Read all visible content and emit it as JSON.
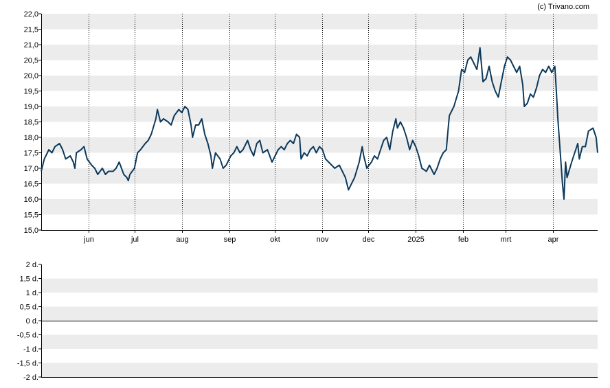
{
  "credit": "(c) Trivano.com",
  "colors": {
    "line": "#0d3a5c",
    "band": "#ececec",
    "vgrid": "#000000",
    "axis": "#000000"
  },
  "chart_data": [
    {
      "type": "line",
      "ylim": [
        15.0,
        22.0
      ],
      "y_ticks": [
        "15,0",
        "15,5",
        "16,0",
        "16,5",
        "17,0",
        "17,5",
        "18,0",
        "18,5",
        "19,0",
        "19,5",
        "20,0",
        "20,5",
        "21,0",
        "21,5",
        "22,0"
      ],
      "x_start": "2024-05-01",
      "x_end": "2025-04-30",
      "x_ticks": [
        {
          "label": "jun",
          "date": "2024-06-01"
        },
        {
          "label": "jul",
          "date": "2024-07-01"
        },
        {
          "label": "aug",
          "date": "2024-08-01"
        },
        {
          "label": "sep",
          "date": "2024-09-01"
        },
        {
          "label": "okt",
          "date": "2024-10-01"
        },
        {
          "label": "nov",
          "date": "2024-11-01"
        },
        {
          "label": "dec",
          "date": "2024-12-01"
        },
        {
          "label": "2025",
          "date": "2025-01-01"
        },
        {
          "label": "feb",
          "date": "2025-02-01"
        },
        {
          "label": "mrt",
          "date": "2025-03-01"
        },
        {
          "label": "apr",
          "date": "2025-04-01"
        }
      ],
      "grid": true,
      "series": [
        {
          "points": [
            [
              "2024-05-01",
              16.9
            ],
            [
              "2024-05-03",
              17.3
            ],
            [
              "2024-05-06",
              17.6
            ],
            [
              "2024-05-08",
              17.5
            ],
            [
              "2024-05-10",
              17.7
            ],
            [
              "2024-05-13",
              17.8
            ],
            [
              "2024-05-15",
              17.6
            ],
            [
              "2024-05-17",
              17.3
            ],
            [
              "2024-05-20",
              17.4
            ],
            [
              "2024-05-22",
              17.2
            ],
            [
              "2024-05-23",
              17.0
            ],
            [
              "2024-05-24",
              17.5
            ],
            [
              "2024-05-27",
              17.6
            ],
            [
              "2024-05-29",
              17.7
            ],
            [
              "2024-05-31",
              17.3
            ],
            [
              "2024-06-03",
              17.1
            ],
            [
              "2024-06-05",
              17.0
            ],
            [
              "2024-06-07",
              16.8
            ],
            [
              "2024-06-10",
              17.0
            ],
            [
              "2024-06-12",
              16.8
            ],
            [
              "2024-06-14",
              16.9
            ],
            [
              "2024-06-17",
              16.9
            ],
            [
              "2024-06-19",
              17.0
            ],
            [
              "2024-06-21",
              17.2
            ],
            [
              "2024-06-24",
              16.8
            ],
            [
              "2024-06-26",
              16.7
            ],
            [
              "2024-06-27",
              16.6
            ],
            [
              "2024-06-28",
              16.8
            ],
            [
              "2024-07-01",
              17.0
            ],
            [
              "2024-07-03",
              17.5
            ],
            [
              "2024-07-05",
              17.6
            ],
            [
              "2024-07-08",
              17.8
            ],
            [
              "2024-07-10",
              17.9
            ],
            [
              "2024-07-12",
              18.1
            ],
            [
              "2024-07-15",
              18.6
            ],
            [
              "2024-07-16",
              18.9
            ],
            [
              "2024-07-18",
              18.5
            ],
            [
              "2024-07-20",
              18.6
            ],
            [
              "2024-07-23",
              18.5
            ],
            [
              "2024-07-25",
              18.4
            ],
            [
              "2024-07-27",
              18.7
            ],
            [
              "2024-07-30",
              18.9
            ],
            [
              "2024-08-01",
              18.8
            ],
            [
              "2024-08-03",
              19.0
            ],
            [
              "2024-08-05",
              18.9
            ],
            [
              "2024-08-07",
              18.4
            ],
            [
              "2024-08-08",
              18.0
            ],
            [
              "2024-08-10",
              18.4
            ],
            [
              "2024-08-12",
              18.4
            ],
            [
              "2024-08-14",
              18.6
            ],
            [
              "2024-08-16",
              18.1
            ],
            [
              "2024-08-18",
              17.8
            ],
            [
              "2024-08-20",
              17.4
            ],
            [
              "2024-08-21",
              17.0
            ],
            [
              "2024-08-23",
              17.5
            ],
            [
              "2024-08-26",
              17.3
            ],
            [
              "2024-08-28",
              17.0
            ],
            [
              "2024-08-30",
              17.1
            ],
            [
              "2024-09-02",
              17.4
            ],
            [
              "2024-09-04",
              17.5
            ],
            [
              "2024-09-06",
              17.7
            ],
            [
              "2024-09-08",
              17.5
            ],
            [
              "2024-09-10",
              17.6
            ],
            [
              "2024-09-13",
              17.9
            ],
            [
              "2024-09-15",
              17.6
            ],
            [
              "2024-09-17",
              17.4
            ],
            [
              "2024-09-19",
              17.8
            ],
            [
              "2024-09-21",
              17.9
            ],
            [
              "2024-09-23",
              17.5
            ],
            [
              "2024-09-26",
              17.6
            ],
            [
              "2024-09-29",
              17.2
            ],
            [
              "2024-10-01",
              17.4
            ],
            [
              "2024-10-03",
              17.6
            ],
            [
              "2024-10-05",
              17.7
            ],
            [
              "2024-10-07",
              17.6
            ],
            [
              "2024-10-09",
              17.8
            ],
            [
              "2024-10-11",
              17.9
            ],
            [
              "2024-10-13",
              17.8
            ],
            [
              "2024-10-15",
              18.1
            ],
            [
              "2024-10-17",
              18.0
            ],
            [
              "2024-10-18",
              17.3
            ],
            [
              "2024-10-20",
              17.5
            ],
            [
              "2024-10-22",
              17.4
            ],
            [
              "2024-10-24",
              17.6
            ],
            [
              "2024-10-26",
              17.7
            ],
            [
              "2024-10-28",
              17.5
            ],
            [
              "2024-10-30",
              17.7
            ],
            [
              "2024-11-01",
              17.6
            ],
            [
              "2024-11-03",
              17.3
            ],
            [
              "2024-11-05",
              17.2
            ],
            [
              "2024-11-07",
              17.1
            ],
            [
              "2024-11-09",
              17.0
            ],
            [
              "2024-11-12",
              17.1
            ],
            [
              "2024-11-14",
              16.9
            ],
            [
              "2024-11-16",
              16.7
            ],
            [
              "2024-11-18",
              16.3
            ],
            [
              "2024-11-20",
              16.5
            ],
            [
              "2024-11-22",
              16.7
            ],
            [
              "2024-11-25",
              17.2
            ],
            [
              "2024-11-27",
              17.7
            ],
            [
              "2024-11-28",
              17.4
            ],
            [
              "2024-11-30",
              17.0
            ],
            [
              "2024-12-03",
              17.2
            ],
            [
              "2024-12-05",
              17.4
            ],
            [
              "2024-12-07",
              17.3
            ],
            [
              "2024-12-09",
              17.6
            ],
            [
              "2024-12-11",
              17.9
            ],
            [
              "2024-12-13",
              18.0
            ],
            [
              "2024-12-15",
              17.6
            ],
            [
              "2024-12-17",
              18.2
            ],
            [
              "2024-12-19",
              18.6
            ],
            [
              "2024-12-20",
              18.3
            ],
            [
              "2024-12-22",
              18.5
            ],
            [
              "2024-12-24",
              18.3
            ],
            [
              "2024-12-26",
              18.0
            ],
            [
              "2024-12-28",
              17.6
            ],
            [
              "2024-12-30",
              17.9
            ],
            [
              "2025-01-01",
              17.7
            ],
            [
              "2025-01-03",
              17.4
            ],
            [
              "2025-01-05",
              17.0
            ],
            [
              "2025-01-08",
              16.9
            ],
            [
              "2025-01-10",
              17.1
            ],
            [
              "2025-01-13",
              16.8
            ],
            [
              "2025-01-15",
              17.0
            ],
            [
              "2025-01-17",
              17.3
            ],
            [
              "2025-01-19",
              17.5
            ],
            [
              "2025-01-21",
              17.6
            ],
            [
              "2025-01-23",
              18.7
            ],
            [
              "2025-01-26",
              19.0
            ],
            [
              "2025-01-29",
              19.5
            ],
            [
              "2025-01-31",
              20.2
            ],
            [
              "2025-02-02",
              20.1
            ],
            [
              "2025-02-04",
              20.5
            ],
            [
              "2025-02-06",
              20.6
            ],
            [
              "2025-02-08",
              20.4
            ],
            [
              "2025-02-10",
              20.2
            ],
            [
              "2025-02-12",
              20.9
            ],
            [
              "2025-02-14",
              19.8
            ],
            [
              "2025-02-16",
              19.9
            ],
            [
              "2025-02-18",
              20.3
            ],
            [
              "2025-02-20",
              19.8
            ],
            [
              "2025-02-22",
              19.5
            ],
            [
              "2025-02-24",
              19.3
            ],
            [
              "2025-02-26",
              19.8
            ],
            [
              "2025-02-28",
              20.3
            ],
            [
              "2025-03-02",
              20.6
            ],
            [
              "2025-03-04",
              20.5
            ],
            [
              "2025-03-06",
              20.3
            ],
            [
              "2025-03-08",
              20.1
            ],
            [
              "2025-03-10",
              20.3
            ],
            [
              "2025-03-12",
              19.7
            ],
            [
              "2025-03-13",
              19.0
            ],
            [
              "2025-03-15",
              19.1
            ],
            [
              "2025-03-17",
              19.4
            ],
            [
              "2025-03-19",
              19.3
            ],
            [
              "2025-03-21",
              19.6
            ],
            [
              "2025-03-23",
              20.0
            ],
            [
              "2025-03-25",
              20.2
            ],
            [
              "2025-03-27",
              20.1
            ],
            [
              "2025-03-29",
              20.3
            ],
            [
              "2025-03-31",
              20.1
            ],
            [
              "2025-04-02",
              20.3
            ],
            [
              "2025-04-03",
              19.5
            ],
            [
              "2025-04-04",
              18.6
            ],
            [
              "2025-04-07",
              16.5
            ],
            [
              "2025-04-08",
              16.0
            ],
            [
              "2025-04-09",
              17.2
            ],
            [
              "2025-04-10",
              16.7
            ],
            [
              "2025-04-13",
              17.2
            ],
            [
              "2025-04-15",
              17.5
            ],
            [
              "2025-04-17",
              17.8
            ],
            [
              "2025-04-18",
              17.3
            ],
            [
              "2025-04-20",
              17.7
            ],
            [
              "2025-04-22",
              17.7
            ],
            [
              "2025-04-24",
              18.2
            ],
            [
              "2025-04-27",
              18.3
            ],
            [
              "2025-04-29",
              18.0
            ],
            [
              "2025-04-30",
              17.5
            ]
          ]
        }
      ]
    },
    {
      "type": "line",
      "ylim": [
        -2,
        2
      ],
      "y_ticks": [
        "-2 d.",
        "-1,5 d.",
        "-1 d.",
        "-0,5 d.",
        "0 d.",
        "0,5 d.",
        "1 d.",
        "1,5 d.",
        "2 d."
      ],
      "series": []
    }
  ]
}
